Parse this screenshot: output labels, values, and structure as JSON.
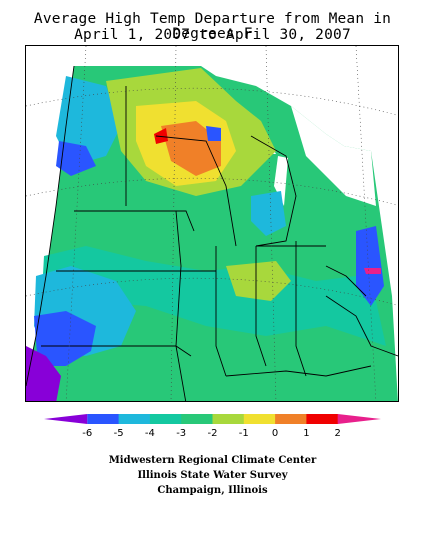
{
  "title": {
    "line1": "Average High Temp Departure from Mean in Degrees F",
    "line2": "April 1, 2007 to April 30, 2007"
  },
  "legend": {
    "ticks": [
      "-6",
      "-5",
      "-4",
      "-3",
      "-2",
      "-1",
      "0",
      "1",
      "2"
    ],
    "colors": [
      "#8800d8",
      "#2a55ff",
      "#1eb8dc",
      "#14c8a0",
      "#28c878",
      "#a8d83c",
      "#f0e030",
      "#f08028",
      "#f00000",
      "#e8208c"
    ]
  },
  "credits": {
    "line1": "Midwestern Regional Climate Center",
    "line2": "Illinois State Water Survey",
    "line3": "Champaign, Illinois"
  },
  "map": {
    "palette": {
      "purple": "#8800d8",
      "blue": "#2a55ff",
      "cyan": "#1eb8dc",
      "teal": "#14c8a0",
      "green": "#28c878",
      "lime": "#a8d83c",
      "yellow": "#f0e030",
      "orange": "#f08028",
      "red": "#f00000"
    }
  }
}
